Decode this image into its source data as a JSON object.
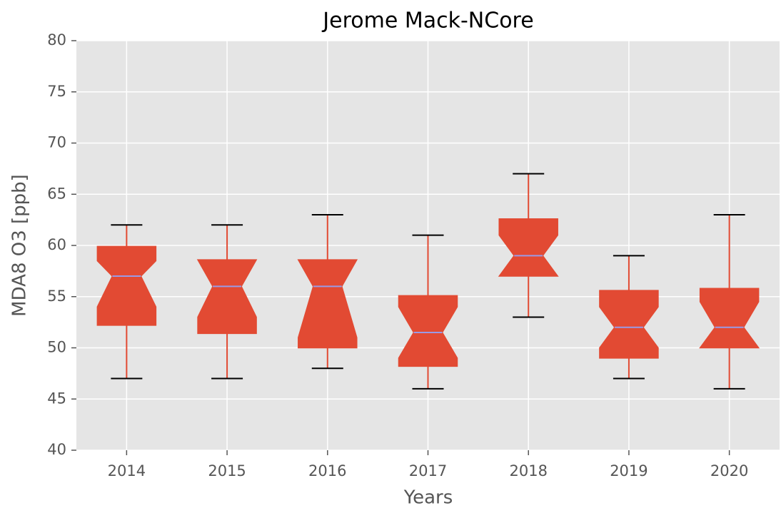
{
  "chart_data": {
    "type": "box",
    "title": "Jerome Mack-NCore",
    "xlabel": "Years",
    "ylabel": "MDA8 O3 [ppb]",
    "categories": [
      "2014",
      "2015",
      "2016",
      "2017",
      "2018",
      "2019",
      "2020"
    ],
    "whisker_low": [
      47,
      47,
      48,
      46,
      53,
      47,
      46
    ],
    "q1": [
      52.2,
      51.4,
      50,
      48.2,
      57,
      49,
      50
    ],
    "notch_low": [
      54,
      53,
      51,
      49,
      57,
      50,
      50
    ],
    "median": [
      57,
      56,
      56,
      51.5,
      59,
      52,
      52
    ],
    "notch_high": [
      58.5,
      58.6,
      58.6,
      54,
      61,
      54,
      54.5
    ],
    "q3": [
      59.9,
      58.6,
      58.6,
      55.1,
      62.6,
      55.6,
      55.8
    ],
    "whisker_high": [
      62,
      62,
      63,
      61,
      67,
      59,
      63
    ],
    "color": "#e24a33",
    "median_color": "#9a9ae6",
    "cap_color": "#000000",
    "ylim": [
      40,
      80
    ],
    "yticks": [
      40,
      45,
      50,
      55,
      60,
      65,
      70,
      75,
      80
    ],
    "grid": true
  }
}
